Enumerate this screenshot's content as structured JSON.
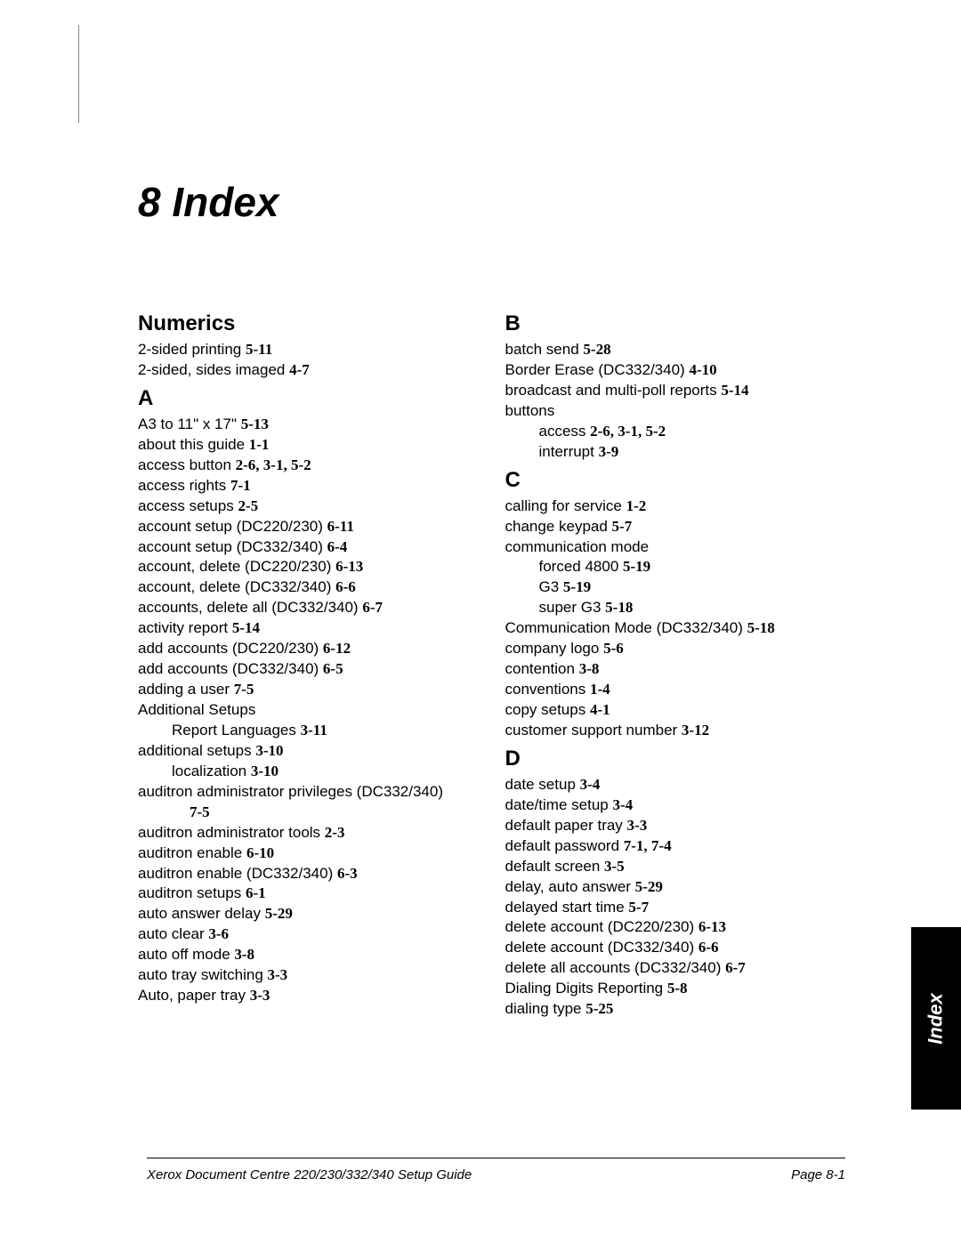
{
  "chapter": {
    "title": "8   Index"
  },
  "tab": {
    "label": "Index"
  },
  "footer": {
    "left": "Xerox Document Centre 220/230/332/340 Setup Guide",
    "right": "Page 8-1"
  },
  "left_col": [
    {
      "type": "letter",
      "text": "Numerics"
    },
    {
      "type": "entry",
      "text": "2-sided printing ",
      "ref": "5-11"
    },
    {
      "type": "entry",
      "text": "2-sided, sides imaged ",
      "ref": "4-7"
    },
    {
      "type": "letter",
      "text": "A"
    },
    {
      "type": "entry",
      "text": "A3 to 11\" x 17\" ",
      "ref": "5-13"
    },
    {
      "type": "entry",
      "text": "about this guide ",
      "ref": "1-1"
    },
    {
      "type": "entry",
      "text": "access button ",
      "ref": "2-6, 3-1, 5-2"
    },
    {
      "type": "entry",
      "text": "access rights ",
      "ref": "7-1"
    },
    {
      "type": "entry",
      "text": "access setups ",
      "ref": "2-5"
    },
    {
      "type": "entry",
      "text": "account setup (DC220/230) ",
      "ref": "6-11"
    },
    {
      "type": "entry",
      "text": "account setup (DC332/340) ",
      "ref": "6-4"
    },
    {
      "type": "entry",
      "text": "account, delete (DC220/230) ",
      "ref": "6-13"
    },
    {
      "type": "entry",
      "text": "account, delete (DC332/340) ",
      "ref": "6-6"
    },
    {
      "type": "entry",
      "text": "accounts, delete all (DC332/340) ",
      "ref": "6-7"
    },
    {
      "type": "entry",
      "text": "activity report ",
      "ref": "5-14"
    },
    {
      "type": "entry",
      "text": "add accounts (DC220/230) ",
      "ref": "6-12"
    },
    {
      "type": "entry",
      "text": "add accounts (DC332/340) ",
      "ref": "6-5"
    },
    {
      "type": "entry",
      "text": "adding a user ",
      "ref": "7-5"
    },
    {
      "type": "entry",
      "text": "Additional Setups"
    },
    {
      "type": "sub",
      "text": "Report Languages ",
      "ref": "3-11"
    },
    {
      "type": "entry",
      "text": "additional setups ",
      "ref": "3-10"
    },
    {
      "type": "sub",
      "text": "localization ",
      "ref": "3-10"
    },
    {
      "type": "entry",
      "text": "auditron administrator privileges (DC332/340)"
    },
    {
      "type": "sub2",
      "text": "",
      "ref": "7-5"
    },
    {
      "type": "entry",
      "text": "auditron administrator tools ",
      "ref": "2-3"
    },
    {
      "type": "entry",
      "text": "auditron enable ",
      "ref": "6-10"
    },
    {
      "type": "entry",
      "text": "auditron enable (DC332/340) ",
      "ref": "6-3"
    },
    {
      "type": "entry",
      "text": "auditron setups ",
      "ref": "6-1"
    },
    {
      "type": "entry",
      "text": "auto answer delay ",
      "ref": "5-29"
    },
    {
      "type": "entry",
      "text": "auto clear ",
      "ref": "3-6"
    },
    {
      "type": "entry",
      "text": "auto off mode ",
      "ref": "3-8"
    },
    {
      "type": "entry",
      "text": "auto tray switching ",
      "ref": "3-3"
    },
    {
      "type": "entry",
      "text": "Auto, paper tray ",
      "ref": "3-3"
    }
  ],
  "right_col": [
    {
      "type": "letter",
      "text": "B"
    },
    {
      "type": "entry",
      "text": "batch send ",
      "ref": "5-28"
    },
    {
      "type": "entry",
      "text": "Border Erase (DC332/340) ",
      "ref": "4-10"
    },
    {
      "type": "entry",
      "text": "broadcast and multi-poll reports ",
      "ref": "5-14"
    },
    {
      "type": "entry",
      "text": "buttons"
    },
    {
      "type": "sub",
      "text": "access ",
      "ref": "2-6, 3-1, 5-2"
    },
    {
      "type": "sub",
      "text": "interrupt ",
      "ref": "3-9"
    },
    {
      "type": "letter",
      "text": "C"
    },
    {
      "type": "entry",
      "text": "calling for service ",
      "ref": "1-2"
    },
    {
      "type": "entry",
      "text": "change keypad ",
      "ref": "5-7"
    },
    {
      "type": "entry",
      "text": "communication mode"
    },
    {
      "type": "sub",
      "text": "forced 4800 ",
      "ref": "5-19"
    },
    {
      "type": "sub",
      "text": "G3 ",
      "ref": "5-19"
    },
    {
      "type": "sub",
      "text": "super G3 ",
      "ref": "5-18"
    },
    {
      "type": "entry",
      "text": "Communication Mode (DC332/340) ",
      "ref": "5-18"
    },
    {
      "type": "entry",
      "text": "company logo ",
      "ref": "5-6"
    },
    {
      "type": "entry",
      "text": "contention ",
      "ref": "3-8"
    },
    {
      "type": "entry",
      "text": "conventions ",
      "ref": "1-4"
    },
    {
      "type": "entry",
      "text": "copy setups ",
      "ref": "4-1"
    },
    {
      "type": "entry",
      "text": "customer support number ",
      "ref": "3-12"
    },
    {
      "type": "letter",
      "text": "D"
    },
    {
      "type": "entry",
      "text": "date setup ",
      "ref": "3-4"
    },
    {
      "type": "entry",
      "text": "date/time setup ",
      "ref": "3-4"
    },
    {
      "type": "entry",
      "text": "default paper tray ",
      "ref": "3-3"
    },
    {
      "type": "entry",
      "text": "default password ",
      "ref": "7-1, 7-4"
    },
    {
      "type": "entry",
      "text": "default screen ",
      "ref": "3-5"
    },
    {
      "type": "entry",
      "text": "delay, auto answer ",
      "ref": "5-29"
    },
    {
      "type": "entry",
      "text": "delayed start time ",
      "ref": "5-7"
    },
    {
      "type": "entry",
      "text": "delete account (DC220/230) ",
      "ref": "6-13"
    },
    {
      "type": "entry",
      "text": "delete account (DC332/340) ",
      "ref": "6-6"
    },
    {
      "type": "entry",
      "text": "delete all accounts (DC332/340) ",
      "ref": "6-7"
    },
    {
      "type": "entry",
      "text": "Dialing Digits Reporting ",
      "ref": "5-8"
    },
    {
      "type": "entry",
      "text": "dialing type ",
      "ref": "5-25"
    }
  ]
}
